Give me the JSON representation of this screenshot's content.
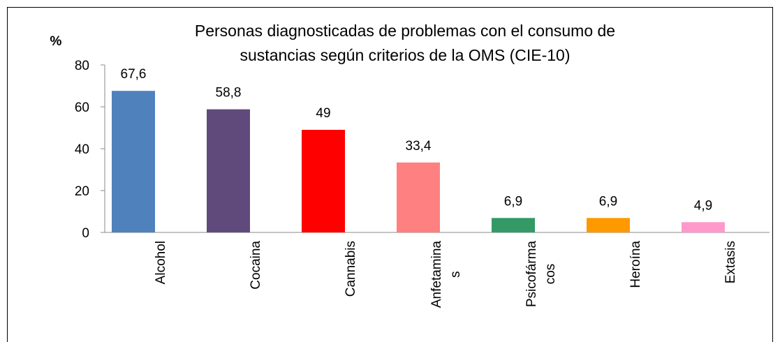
{
  "chart_data": {
    "type": "bar",
    "title": [
      "Personas diagnosticadas de problemas con el consumo de",
      "sustancias según criterios de la OMS (CIE-10)"
    ],
    "y_label": "%",
    "categories": [
      "Alcohol",
      "Cocaina",
      "Cannabis",
      "Anfetaminas",
      "Psicofármacos",
      "Heroína",
      "Extasis"
    ],
    "values": [
      67.6,
      58.8,
      49,
      33.4,
      6.9,
      6.9,
      4.9
    ],
    "value_labels": [
      "67,6",
      "58,8",
      "49",
      "33,4",
      "6,9",
      "6,9",
      "4,9"
    ],
    "colors": [
      "#4f81bd",
      "#604a7b",
      "#ff0000",
      "#ff8080",
      "#339966",
      "#ff9900",
      "#ff99cc"
    ],
    "ylim": [
      0,
      80
    ],
    "yticks": [
      0,
      20,
      40,
      60,
      80
    ],
    "grid": false
  }
}
